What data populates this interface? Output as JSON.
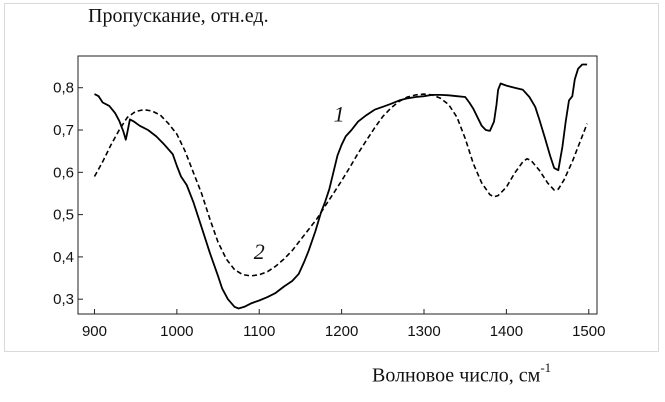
{
  "chart_data": {
    "type": "line",
    "ylabel": "Пропускание, отн.ед.",
    "xlabel": "Волновое число, см",
    "xlabel_superscript": "-1",
    "xlim": [
      880,
      1510
    ],
    "ylim": [
      0.265,
      0.875
    ],
    "x_ticks": [
      900,
      1000,
      1100,
      1200,
      1300,
      1400,
      1500
    ],
    "y_ticks": [
      0.3,
      0.4,
      0.5,
      0.6,
      0.7,
      0.8
    ],
    "y_tick_labels": [
      "0,3",
      "0,4",
      "0,5",
      "0,6",
      "0,7",
      "0,8"
    ],
    "grid": false,
    "series": [
      {
        "name": "1",
        "style": "solid",
        "label_at": [
          1197,
          0.72
        ],
        "points": [
          [
            900,
            0.785
          ],
          [
            905,
            0.78
          ],
          [
            910,
            0.765
          ],
          [
            918,
            0.757
          ],
          [
            925,
            0.74
          ],
          [
            930,
            0.722
          ],
          [
            935,
            0.697
          ],
          [
            938,
            0.677
          ],
          [
            940,
            0.695
          ],
          [
            943,
            0.725
          ],
          [
            948,
            0.72
          ],
          [
            955,
            0.71
          ],
          [
            965,
            0.7
          ],
          [
            975,
            0.685
          ],
          [
            985,
            0.665
          ],
          [
            995,
            0.643
          ],
          [
            1000,
            0.615
          ],
          [
            1005,
            0.59
          ],
          [
            1012,
            0.57
          ],
          [
            1020,
            0.53
          ],
          [
            1030,
            0.47
          ],
          [
            1040,
            0.41
          ],
          [
            1050,
            0.355
          ],
          [
            1055,
            0.325
          ],
          [
            1062,
            0.3
          ],
          [
            1070,
            0.282
          ],
          [
            1075,
            0.278
          ],
          [
            1082,
            0.282
          ],
          [
            1090,
            0.29
          ],
          [
            1100,
            0.297
          ],
          [
            1110,
            0.305
          ],
          [
            1120,
            0.315
          ],
          [
            1130,
            0.33
          ],
          [
            1140,
            0.343
          ],
          [
            1148,
            0.36
          ],
          [
            1155,
            0.39
          ],
          [
            1160,
            0.415
          ],
          [
            1168,
            0.46
          ],
          [
            1175,
            0.505
          ],
          [
            1180,
            0.53
          ],
          [
            1185,
            0.56
          ],
          [
            1190,
            0.6
          ],
          [
            1195,
            0.64
          ],
          [
            1200,
            0.665
          ],
          [
            1205,
            0.685
          ],
          [
            1212,
            0.7
          ],
          [
            1220,
            0.72
          ],
          [
            1230,
            0.735
          ],
          [
            1240,
            0.748
          ],
          [
            1250,
            0.755
          ],
          [
            1260,
            0.762
          ],
          [
            1270,
            0.77
          ],
          [
            1280,
            0.775
          ],
          [
            1290,
            0.778
          ],
          [
            1300,
            0.78
          ],
          [
            1310,
            0.783
          ],
          [
            1320,
            0.783
          ],
          [
            1330,
            0.782
          ],
          [
            1340,
            0.78
          ],
          [
            1350,
            0.778
          ],
          [
            1355,
            0.765
          ],
          [
            1360,
            0.75
          ],
          [
            1365,
            0.73
          ],
          [
            1370,
            0.71
          ],
          [
            1375,
            0.7
          ],
          [
            1380,
            0.698
          ],
          [
            1385,
            0.72
          ],
          [
            1388,
            0.76
          ],
          [
            1390,
            0.795
          ],
          [
            1393,
            0.81
          ],
          [
            1400,
            0.805
          ],
          [
            1410,
            0.8
          ],
          [
            1420,
            0.795
          ],
          [
            1428,
            0.778
          ],
          [
            1435,
            0.755
          ],
          [
            1440,
            0.725
          ],
          [
            1447,
            0.68
          ],
          [
            1453,
            0.64
          ],
          [
            1458,
            0.61
          ],
          [
            1463,
            0.605
          ],
          [
            1468,
            0.66
          ],
          [
            1472,
            0.72
          ],
          [
            1476,
            0.77
          ],
          [
            1480,
            0.78
          ],
          [
            1483,
            0.82
          ],
          [
            1487,
            0.845
          ],
          [
            1492,
            0.855
          ],
          [
            1498,
            0.855
          ]
        ]
      },
      {
        "name": "2",
        "style": "dashed",
        "label_at": [
          1100,
          0.395
        ],
        "points": [
          [
            900,
            0.59
          ],
          [
            910,
            0.625
          ],
          [
            920,
            0.665
          ],
          [
            930,
            0.7
          ],
          [
            940,
            0.73
          ],
          [
            950,
            0.744
          ],
          [
            960,
            0.748
          ],
          [
            970,
            0.745
          ],
          [
            980,
            0.735
          ],
          [
            990,
            0.715
          ],
          [
            1000,
            0.69
          ],
          [
            1010,
            0.65
          ],
          [
            1020,
            0.6
          ],
          [
            1030,
            0.55
          ],
          [
            1040,
            0.49
          ],
          [
            1050,
            0.435
          ],
          [
            1060,
            0.395
          ],
          [
            1070,
            0.37
          ],
          [
            1080,
            0.358
          ],
          [
            1090,
            0.355
          ],
          [
            1100,
            0.358
          ],
          [
            1110,
            0.365
          ],
          [
            1120,
            0.378
          ],
          [
            1130,
            0.395
          ],
          [
            1140,
            0.415
          ],
          [
            1150,
            0.44
          ],
          [
            1160,
            0.465
          ],
          [
            1170,
            0.49
          ],
          [
            1180,
            0.52
          ],
          [
            1190,
            0.55
          ],
          [
            1200,
            0.58
          ],
          [
            1210,
            0.612
          ],
          [
            1220,
            0.645
          ],
          [
            1230,
            0.675
          ],
          [
            1240,
            0.705
          ],
          [
            1250,
            0.732
          ],
          [
            1260,
            0.752
          ],
          [
            1270,
            0.768
          ],
          [
            1280,
            0.778
          ],
          [
            1290,
            0.783
          ],
          [
            1300,
            0.785
          ],
          [
            1310,
            0.783
          ],
          [
            1320,
            0.775
          ],
          [
            1330,
            0.76
          ],
          [
            1340,
            0.73
          ],
          [
            1350,
            0.68
          ],
          [
            1360,
            0.62
          ],
          [
            1370,
            0.575
          ],
          [
            1380,
            0.547
          ],
          [
            1385,
            0.542
          ],
          [
            1390,
            0.545
          ],
          [
            1400,
            0.565
          ],
          [
            1410,
            0.598
          ],
          [
            1420,
            0.625
          ],
          [
            1425,
            0.632
          ],
          [
            1430,
            0.628
          ],
          [
            1440,
            0.605
          ],
          [
            1450,
            0.575
          ],
          [
            1458,
            0.558
          ],
          [
            1463,
            0.56
          ],
          [
            1470,
            0.582
          ],
          [
            1480,
            0.625
          ],
          [
            1490,
            0.675
          ],
          [
            1498,
            0.715
          ]
        ]
      }
    ]
  }
}
